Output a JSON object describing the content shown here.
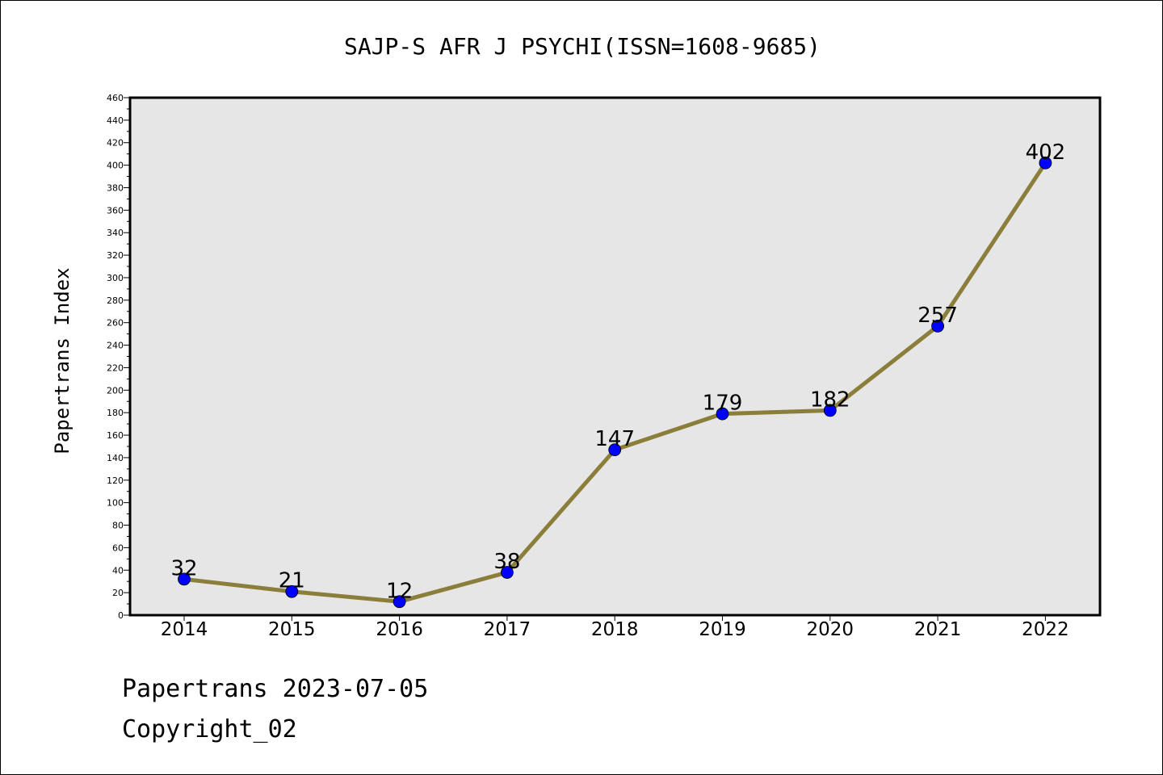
{
  "chart_data": {
    "type": "line",
    "title": "SAJP-S AFR J PSYCHI(ISSN=1608-9685)",
    "ylabel": "Papertrans Index",
    "xlabel": "",
    "categories": [
      "2014",
      "2015",
      "2016",
      "2017",
      "2018",
      "2019",
      "2020",
      "2021",
      "2022"
    ],
    "series": [
      {
        "values": [
          32,
          21,
          12,
          38,
          147,
          179,
          182,
          257,
          402
        ]
      }
    ],
    "ylim": [
      0,
      460
    ],
    "yticks": [
      0,
      20,
      40,
      60,
      80,
      100,
      120,
      140,
      160,
      180,
      200,
      220,
      240,
      260,
      280,
      300,
      320,
      340,
      360,
      380,
      400,
      420,
      440,
      460
    ],
    "grid": false,
    "line_color": "#8b7d3a",
    "marker_color": "#0000ff",
    "plot_background": "#e6e6e6"
  },
  "footer": {
    "source": "Papertrans 2023-07-05",
    "copyright": "Copyright_02"
  }
}
